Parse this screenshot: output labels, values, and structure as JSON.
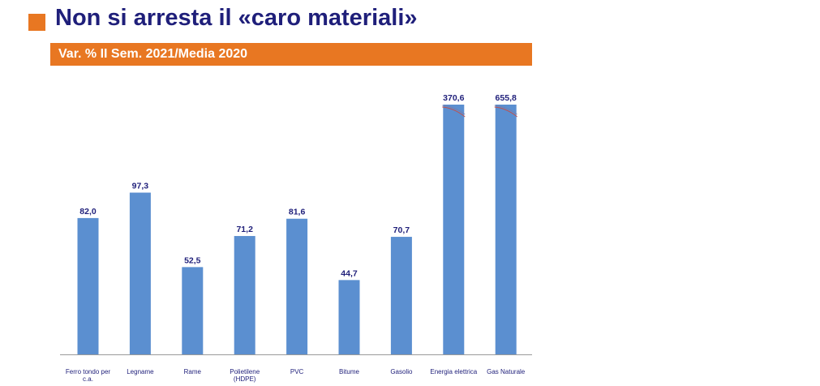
{
  "slide": {
    "title": "Non si arresta il «caro materiali»"
  },
  "colors": {
    "accent": "#e87722",
    "title": "#1f1f7a",
    "bar": "#5b8fd0"
  },
  "chart_data": {
    "type": "bar",
    "title": "Var. % II Sem. 2021/Media 2020",
    "xlabel": "",
    "ylabel": "",
    "grid": false,
    "legend": "none",
    "categories": [
      [
        "Ferro tondo per",
        "c.a."
      ],
      [
        "Legname"
      ],
      [
        "Rame"
      ],
      [
        "Polietilene",
        "(HDPE)"
      ],
      [
        "PVC"
      ],
      [
        "Bitume"
      ],
      [
        "Gasolio"
      ],
      [
        "Energia elettrica"
      ],
      [
        "Gas Naturale"
      ]
    ],
    "values": [
      82.0,
      97.3,
      52.5,
      71.2,
      81.6,
      44.7,
      70.7,
      370.6,
      655.8
    ],
    "data_labels": [
      "82,0",
      "97,3",
      "52,5",
      "71,2",
      "81,6",
      "44,7",
      "70,7",
      "370,6",
      "655,8"
    ],
    "axis_break": {
      "from": 110,
      "to": 330
    }
  }
}
